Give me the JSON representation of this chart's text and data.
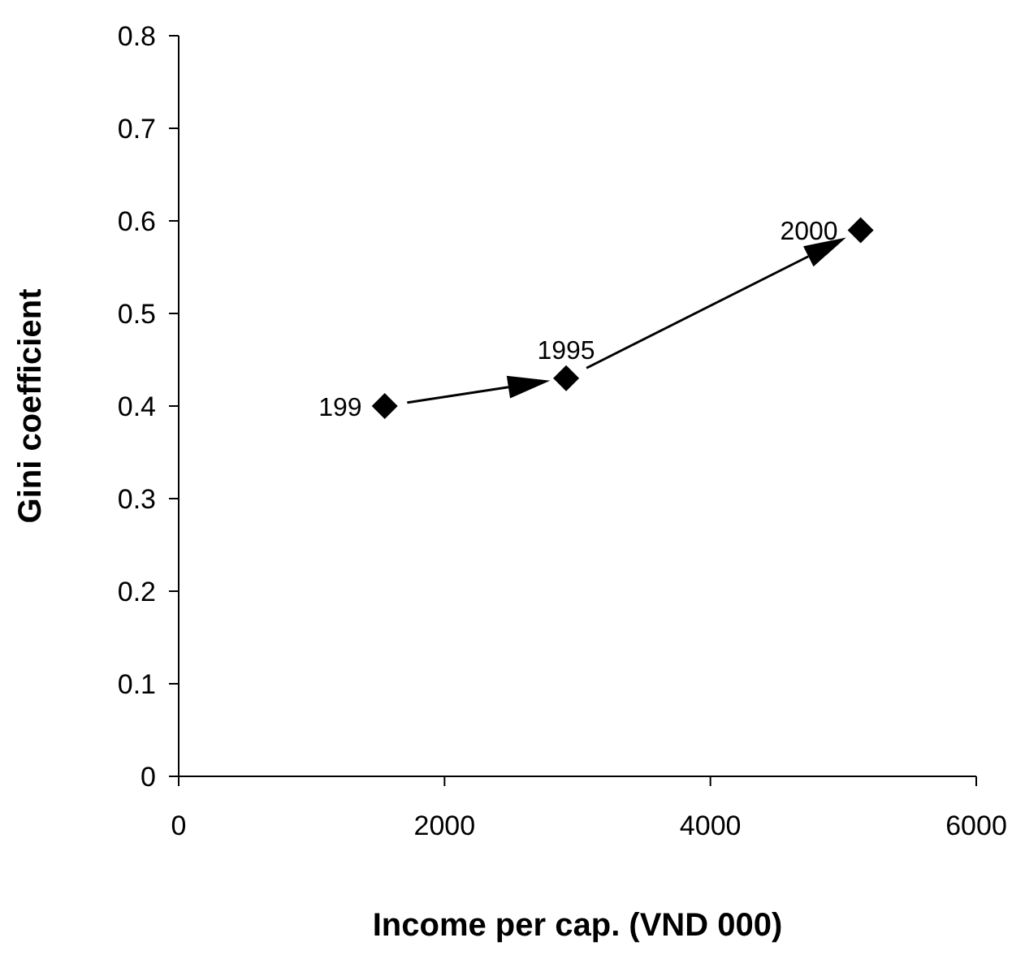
{
  "chart_data": {
    "type": "scatter",
    "xlabel": "Income per cap. (VND 000)",
    "ylabel": "Gini coefficient",
    "x": [
      1550,
      2915,
      5130
    ],
    "values": [
      0.4,
      0.43,
      0.59
    ],
    "color": "#000000",
    "marker": "diamond",
    "grid": false,
    "legend": false,
    "xlim": [
      0,
      6000
    ],
    "xticks": [
      0,
      2000,
      4000,
      6000
    ],
    "ylim": [
      0,
      0.8
    ],
    "yticks": [
      0,
      0.1,
      0.2,
      0.3,
      0.4,
      0.5,
      0.6,
      0.7,
      0.8
    ],
    "annotations": [
      {
        "text": "199",
        "x": 1550,
        "y": 0.4
      },
      {
        "text": "1995",
        "x": 2915,
        "y": 0.43
      },
      {
        "text": "2000",
        "x": 5130,
        "y": 0.59
      }
    ]
  }
}
